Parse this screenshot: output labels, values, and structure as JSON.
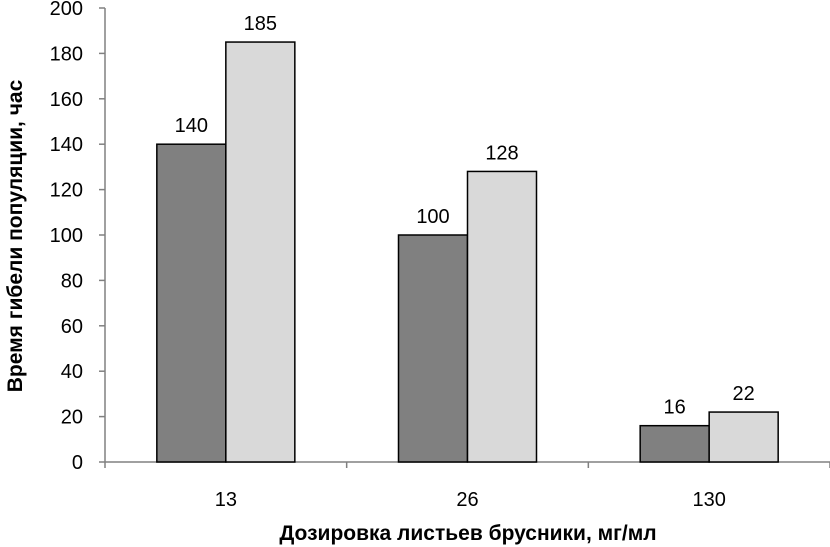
{
  "chart_data": {
    "type": "bar",
    "title": "",
    "xlabel": "Дозировка листьев брусники, мг/мл",
    "ylabel": "Время гибели популяции, час",
    "categories": [
      "13",
      "26",
      "130"
    ],
    "series": [
      {
        "values": [
          140,
          100,
          16
        ],
        "color": "#808080"
      },
      {
        "values": [
          185,
          128,
          22
        ],
        "color": "#d9d9d9"
      }
    ],
    "ylim": [
      0,
      200
    ],
    "yticks": [
      0,
      20,
      40,
      60,
      80,
      100,
      120,
      140,
      160,
      180,
      200
    ],
    "grid": false,
    "legend": "none",
    "data_labels": true
  }
}
